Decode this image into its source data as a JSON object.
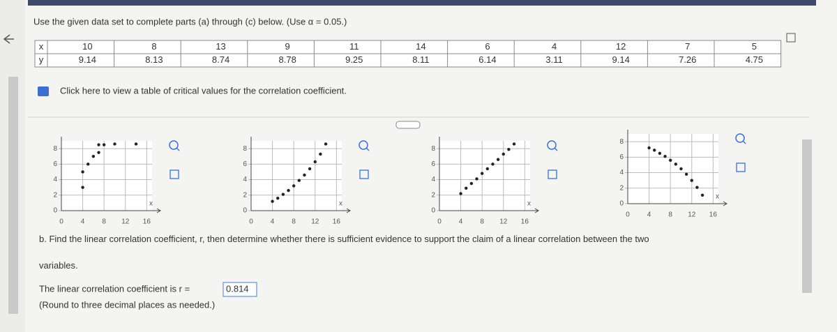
{
  "instructions": "Use the given data set to complete parts (a) through (c) below. (Use α = 0.05.)",
  "table": {
    "row_labels": [
      "x",
      "y"
    ],
    "x": [
      10,
      8,
      13,
      9,
      11,
      14,
      6,
      4,
      12,
      7,
      5
    ],
    "y": [
      9.14,
      8.13,
      8.74,
      8.78,
      9.25,
      8.11,
      6.14,
      3.11,
      9.14,
      7.26,
      4.75
    ]
  },
  "link_text": "Click here to view a table of critical values for the correlation coefficient.",
  "graphs": [
    {
      "type": "scatter",
      "x_label": "x",
      "xlim": [
        0,
        17
      ],
      "ylim": [
        0,
        9
      ],
      "xticks": [
        0,
        4,
        8,
        12,
        16
      ],
      "yticks": [
        0,
        2,
        4,
        6,
        8
      ],
      "x": [
        4,
        4,
        5,
        6,
        7,
        7,
        8,
        10,
        14
      ],
      "y": [
        3,
        5,
        6,
        7,
        7.5,
        8.5,
        8.5,
        8.6,
        8.6
      ]
    },
    {
      "type": "scatter",
      "x_label": "x",
      "xlim": [
        0,
        17
      ],
      "ylim": [
        0,
        9
      ],
      "xticks": [
        0,
        4,
        8,
        12,
        16
      ],
      "yticks": [
        0,
        2,
        4,
        6,
        8
      ],
      "x": [
        4,
        5,
        6,
        7,
        8,
        9,
        10,
        11,
        12,
        13,
        14
      ],
      "y": [
        1.2,
        1.6,
        2.1,
        2.6,
        3.2,
        3.9,
        4.6,
        5.4,
        6.3,
        7.3,
        8.6
      ]
    },
    {
      "type": "scatter",
      "x_label": "x",
      "xlim": [
        0,
        17
      ],
      "ylim": [
        0,
        9
      ],
      "xticks": [
        0,
        4,
        8,
        12,
        16
      ],
      "yticks": [
        0,
        2,
        4,
        6,
        8
      ],
      "x": [
        4,
        5,
        6,
        7,
        8,
        9,
        10,
        11,
        12,
        13,
        14
      ],
      "y": [
        2.2,
        2.9,
        3.5,
        4.1,
        4.8,
        5.4,
        6.0,
        6.6,
        7.3,
        7.9,
        8.6
      ]
    },
    {
      "type": "scatter",
      "x_label": "x",
      "xlim": [
        0,
        17
      ],
      "ylim": [
        0,
        9
      ],
      "xticks": [
        0,
        4,
        8,
        12,
        16
      ],
      "yticks": [
        0,
        2,
        4,
        6,
        8
      ],
      "x": [
        4,
        5,
        6,
        7,
        8,
        9,
        10,
        11,
        12,
        13,
        14
      ],
      "y": [
        7.2,
        6.9,
        6.5,
        6.1,
        5.6,
        5.1,
        4.5,
        3.8,
        3.0,
        2.1,
        1.1
      ]
    }
  ],
  "part_b": "b. Find the linear correlation coefficient, r, then determine whether there is sufficient evidence to support the claim of a linear correlation between the two variables.",
  "answer_prefix": "The linear correlation coefficient is r =",
  "answer": 0.814,
  "answer_note": "(Round to three decimal places as needed.)"
}
